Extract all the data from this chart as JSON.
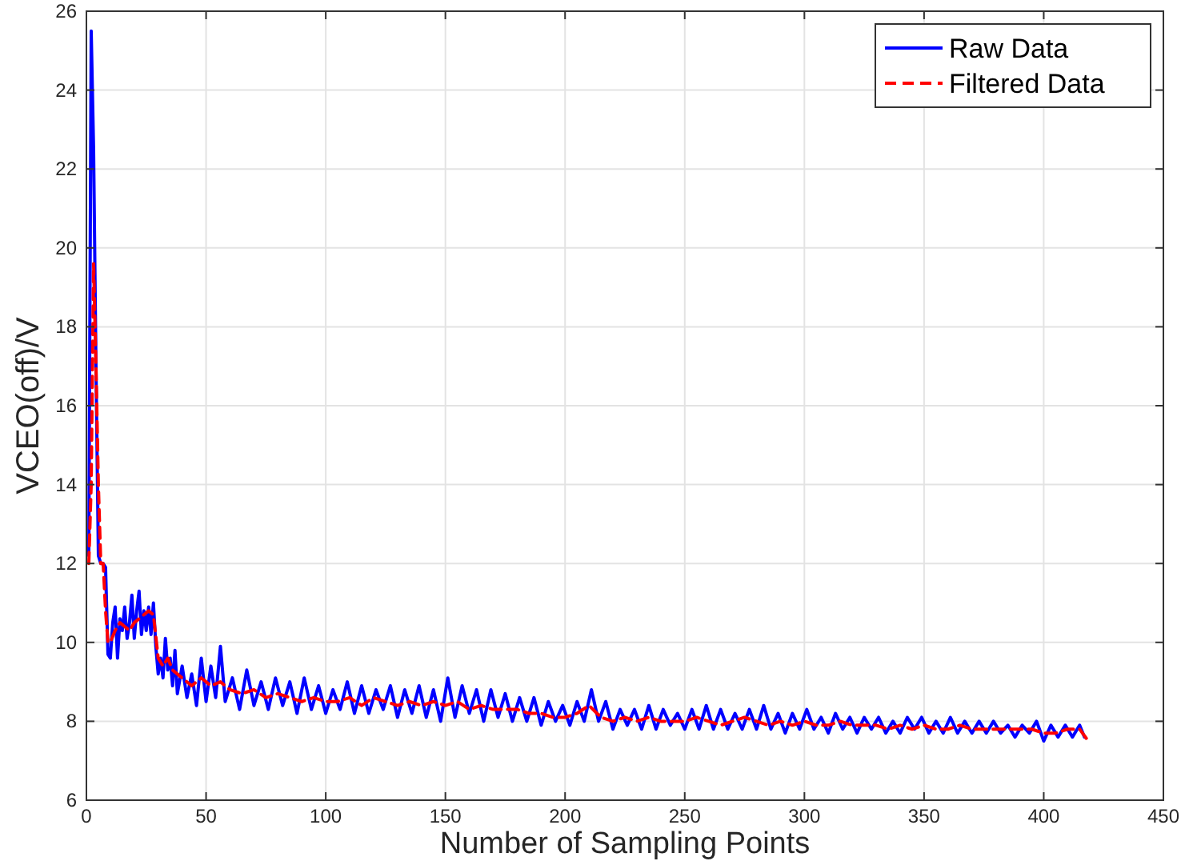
{
  "chart_data": {
    "type": "line",
    "xlabel": "Number of Sampling Points",
    "ylabel": "VCEO(off)/V",
    "xlim": [
      0,
      450
    ],
    "xticks": [
      0,
      50,
      100,
      150,
      200,
      250,
      300,
      350,
      400,
      450
    ],
    "ylim": [
      6,
      26
    ],
    "yticks": [
      6,
      8,
      10,
      12,
      14,
      16,
      18,
      20,
      22,
      24,
      26
    ],
    "grid": true,
    "legend": "top right",
    "series": [
      {
        "name": "Raw Data",
        "color": "#0000ff",
        "line_style": "solid",
        "x": [
          1,
          2,
          3,
          4,
          5,
          6,
          7,
          8,
          9,
          10,
          11,
          12,
          13,
          14,
          15,
          16,
          17,
          18,
          19,
          20,
          21,
          22,
          23,
          24,
          25,
          26,
          27,
          28,
          29,
          30,
          31,
          32,
          33,
          34,
          35,
          36,
          37,
          38,
          40,
          42,
          44,
          46,
          48,
          50,
          52,
          54,
          56,
          58,
          61,
          64,
          67,
          70,
          73,
          76,
          79,
          82,
          85,
          88,
          91,
          94,
          97,
          100,
          103,
          106,
          109,
          112,
          115,
          118,
          121,
          124,
          127,
          130,
          133,
          136,
          139,
          142,
          145,
          148,
          151,
          154,
          157,
          160,
          163,
          166,
          169,
          172,
          175,
          178,
          181,
          184,
          187,
          190,
          193,
          196,
          199,
          202,
          205,
          208,
          211,
          214,
          217,
          220,
          223,
          226,
          229,
          232,
          235,
          238,
          241,
          244,
          247,
          250,
          253,
          256,
          259,
          262,
          265,
          268,
          271,
          274,
          277,
          280,
          283,
          286,
          289,
          292,
          295,
          298,
          301,
          304,
          307,
          310,
          313,
          316,
          319,
          322,
          325,
          328,
          331,
          334,
          337,
          340,
          343,
          346,
          349,
          352,
          355,
          358,
          361,
          364,
          367,
          370,
          373,
          376,
          379,
          382,
          385,
          388,
          391,
          394,
          397,
          400,
          403,
          406,
          409,
          412,
          415,
          417
        ],
        "values": [
          12.2,
          25.5,
          22.5,
          17,
          12.2,
          12,
          12,
          11.9,
          9.7,
          9.6,
          10.5,
          10.9,
          9.6,
          10.6,
          10.3,
          10.9,
          10.1,
          10.5,
          11.2,
          10.1,
          10.8,
          11.3,
          10.2,
          10.8,
          10.3,
          10.9,
          10.2,
          11.0,
          9.9,
          9.2,
          9.6,
          9.1,
          10.1,
          9.3,
          9.6,
          8.9,
          9.8,
          8.7,
          9.4,
          8.6,
          9.2,
          8.4,
          9.6,
          8.5,
          9.4,
          8.6,
          9.9,
          8.5,
          9.1,
          8.3,
          9.3,
          8.4,
          9.0,
          8.3,
          9.1,
          8.4,
          9.0,
          8.2,
          9.1,
          8.3,
          8.9,
          8.2,
          8.8,
          8.3,
          9.0,
          8.2,
          8.9,
          8.2,
          8.8,
          8.3,
          8.9,
          8.1,
          8.8,
          8.2,
          8.9,
          8.1,
          8.8,
          8.0,
          9.1,
          8.1,
          8.9,
          8.2,
          8.8,
          8.0,
          8.8,
          8.1,
          8.7,
          8.0,
          8.6,
          8.0,
          8.6,
          7.9,
          8.5,
          8.0,
          8.4,
          7.9,
          8.5,
          8.0,
          8.8,
          8.0,
          8.5,
          7.8,
          8.3,
          7.9,
          8.3,
          7.8,
          8.4,
          7.8,
          8.3,
          7.9,
          8.2,
          7.8,
          8.3,
          7.8,
          8.4,
          7.8,
          8.3,
          7.8,
          8.2,
          7.8,
          8.3,
          7.8,
          8.4,
          7.8,
          8.2,
          7.7,
          8.2,
          7.8,
          8.3,
          7.8,
          8.1,
          7.7,
          8.2,
          7.8,
          8.1,
          7.7,
          8.1,
          7.8,
          8.1,
          7.7,
          8.0,
          7.7,
          8.1,
          7.8,
          8.1,
          7.7,
          8.0,
          7.7,
          8.1,
          7.7,
          8.0,
          7.7,
          8.0,
          7.7,
          8.0,
          7.7,
          7.9,
          7.6,
          7.9,
          7.7,
          8.0,
          7.5,
          7.9,
          7.6,
          7.9,
          7.6,
          7.9,
          7.6
        ]
      },
      {
        "name": "Filtered Data",
        "color": "#ff0000",
        "line_style": "dashed",
        "x": [
          1,
          2,
          3,
          4,
          5,
          6,
          7,
          8,
          9,
          10,
          12,
          14,
          16,
          18,
          20,
          22,
          24,
          26,
          28,
          30,
          32,
          34,
          36,
          40,
          44,
          48,
          52,
          56,
          60,
          65,
          70,
          75,
          80,
          85,
          90,
          95,
          100,
          105,
          110,
          115,
          120,
          125,
          130,
          135,
          140,
          145,
          150,
          155,
          160,
          165,
          170,
          175,
          180,
          185,
          190,
          195,
          200,
          205,
          210,
          215,
          220,
          225,
          230,
          235,
          240,
          245,
          250,
          255,
          260,
          265,
          270,
          275,
          280,
          285,
          290,
          295,
          300,
          305,
          310,
          315,
          320,
          325,
          330,
          335,
          340,
          345,
          350,
          355,
          360,
          365,
          370,
          375,
          380,
          385,
          390,
          395,
          400,
          405,
          410,
          415,
          418
        ],
        "values": [
          12.0,
          14,
          19.6,
          17,
          14,
          12,
          12,
          10.8,
          10.0,
          10.0,
          10.3,
          10.5,
          10.4,
          10.3,
          10.5,
          10.6,
          10.7,
          10.8,
          10.7,
          9.6,
          9.4,
          9.6,
          9.3,
          9.1,
          8.9,
          9.1,
          8.9,
          9.0,
          8.8,
          8.7,
          8.8,
          8.6,
          8.7,
          8.6,
          8.5,
          8.6,
          8.5,
          8.5,
          8.6,
          8.4,
          8.6,
          8.5,
          8.4,
          8.5,
          8.4,
          8.5,
          8.4,
          8.5,
          8.3,
          8.4,
          8.3,
          8.3,
          8.3,
          8.2,
          8.2,
          8.1,
          8.1,
          8.2,
          8.4,
          8.1,
          8.0,
          8.1,
          8.0,
          8.1,
          8.0,
          8.0,
          8.0,
          8.1,
          8.0,
          7.9,
          8.0,
          8.1,
          8.0,
          7.9,
          8.0,
          7.9,
          8.0,
          7.9,
          7.9,
          8.0,
          7.9,
          7.9,
          7.9,
          7.8,
          7.9,
          7.8,
          7.9,
          7.8,
          7.8,
          7.9,
          7.8,
          7.8,
          7.8,
          7.8,
          7.8,
          7.8,
          7.7,
          7.7,
          7.8,
          7.8,
          7.55
        ]
      }
    ]
  }
}
